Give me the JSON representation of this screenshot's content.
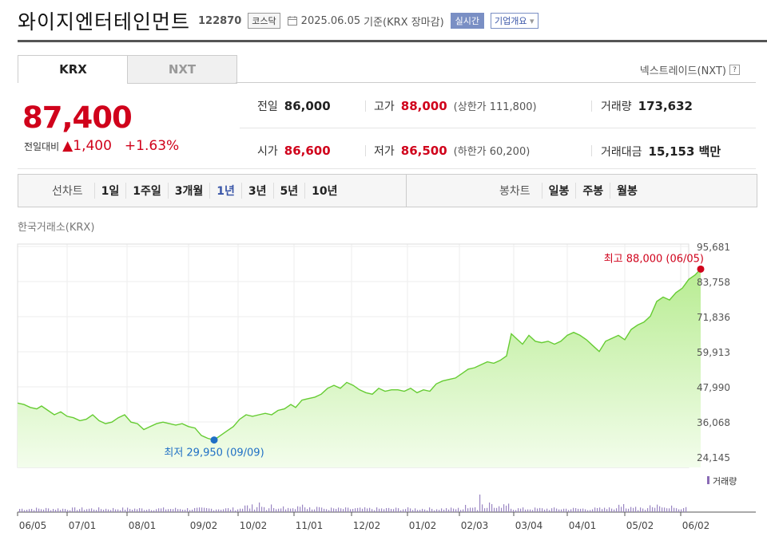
{
  "header": {
    "company": "와이지엔터테인먼트",
    "code": "122870",
    "market_badge": "코스닥",
    "date": "2025.06.05",
    "basis": "기준(KRX 장마감)",
    "realtime": "실시간",
    "corp_overview": "기업개요",
    "corp_chevron": "▾"
  },
  "tabs": [
    {
      "label": "KRX",
      "active": true
    },
    {
      "label": "NXT",
      "active": false
    }
  ],
  "nxt_link": {
    "label": "넥스트레이드(NXT)",
    "help": "?"
  },
  "price": {
    "current": "87,400",
    "change_label": "전일대비",
    "change_arrow": "▲",
    "change": "1,400",
    "change_pct": "+1.63%"
  },
  "stats": {
    "prev_label": "전일",
    "prev": "86,000",
    "high_label": "고가",
    "high": "88,000",
    "upper_limit_text": "(상한가 111,800)",
    "volume_label": "거래량",
    "volume": "173,632",
    "open_label": "시가",
    "open": "86,600",
    "low_label": "저가",
    "low": "86,500",
    "lower_limit_text": "(하한가 60,200)",
    "amount_label": "거래대금",
    "amount": "15,153 백만"
  },
  "toolbar": {
    "line_label": "선차트",
    "line_periods": [
      "1일",
      "1주일",
      "3개월",
      "1년",
      "3년",
      "5년",
      "10년"
    ],
    "active_period": "1년",
    "candle_label": "봉차트",
    "candle_periods": [
      "일봉",
      "주봉",
      "월봉"
    ]
  },
  "chart_data": {
    "type": "area",
    "title": "한국거래소(KRX)",
    "y_ticks": [
      "95,681",
      "83,758",
      "71,836",
      "59,913",
      "47,990",
      "36,068",
      "24,145"
    ],
    "ylim": [
      24145,
      95681
    ],
    "x_ticks": [
      "06/05",
      "07/01",
      "08/01",
      "09/02",
      "10/02",
      "11/01",
      "12/02",
      "01/02",
      "02/03",
      "03/04",
      "04/01",
      "05/02",
      "06/02"
    ],
    "max_label": "최고 88,000 (06/05)",
    "min_label": "최저 29,950 (09/09)",
    "volume_legend": "거래량",
    "line_color": "#66cc33",
    "fill_color": "#cdf3b3",
    "high_color": "#d0021b",
    "low_color": "#1f6fc5",
    "price_points": [
      [
        0,
        42500
      ],
      [
        8,
        42000
      ],
      [
        16,
        41000
      ],
      [
        24,
        40500
      ],
      [
        30,
        41500
      ],
      [
        38,
        40000
      ],
      [
        46,
        38500
      ],
      [
        54,
        39500
      ],
      [
        62,
        38000
      ],
      [
        70,
        37500
      ],
      [
        78,
        36500
      ],
      [
        86,
        37000
      ],
      [
        94,
        38500
      ],
      [
        102,
        36500
      ],
      [
        110,
        35500
      ],
      [
        118,
        36000
      ],
      [
        126,
        37500
      ],
      [
        134,
        38500
      ],
      [
        142,
        36000
      ],
      [
        150,
        35500
      ],
      [
        158,
        33500
      ],
      [
        166,
        34500
      ],
      [
        174,
        35500
      ],
      [
        182,
        36000
      ],
      [
        190,
        35500
      ],
      [
        198,
        35000
      ],
      [
        206,
        35500
      ],
      [
        214,
        34500
      ],
      [
        222,
        34000
      ],
      [
        230,
        31500
      ],
      [
        238,
        30500
      ],
      [
        246,
        29950
      ],
      [
        254,
        31500
      ],
      [
        262,
        33000
      ],
      [
        270,
        34500
      ],
      [
        278,
        37000
      ],
      [
        286,
        38500
      ],
      [
        294,
        38000
      ],
      [
        302,
        38500
      ],
      [
        310,
        39000
      ],
      [
        318,
        38500
      ],
      [
        326,
        40000
      ],
      [
        334,
        40500
      ],
      [
        342,
        42000
      ],
      [
        348,
        41000
      ],
      [
        356,
        43500
      ],
      [
        364,
        44000
      ],
      [
        372,
        44500
      ],
      [
        380,
        45500
      ],
      [
        388,
        47500
      ],
      [
        396,
        48500
      ],
      [
        404,
        47500
      ],
      [
        412,
        49500
      ],
      [
        420,
        48500
      ],
      [
        428,
        47000
      ],
      [
        436,
        46000
      ],
      [
        444,
        45500
      ],
      [
        452,
        47500
      ],
      [
        460,
        46500
      ],
      [
        468,
        47000
      ],
      [
        476,
        47000
      ],
      [
        484,
        46500
      ],
      [
        492,
        47500
      ],
      [
        500,
        46000
      ],
      [
        508,
        47000
      ],
      [
        516,
        46500
      ],
      [
        524,
        49000
      ],
      [
        532,
        50000
      ],
      [
        540,
        50500
      ],
      [
        548,
        51000
      ],
      [
        556,
        52500
      ],
      [
        564,
        54000
      ],
      [
        572,
        54500
      ],
      [
        580,
        55500
      ],
      [
        588,
        56500
      ],
      [
        596,
        56000
      ],
      [
        604,
        57000
      ],
      [
        612,
        58500
      ],
      [
        618,
        66000
      ],
      [
        624,
        64500
      ],
      [
        632,
        62500
      ],
      [
        640,
        65500
      ],
      [
        648,
        63500
      ],
      [
        656,
        63000
      ],
      [
        664,
        63500
      ],
      [
        672,
        62500
      ],
      [
        680,
        63500
      ],
      [
        688,
        65500
      ],
      [
        696,
        66500
      ],
      [
        704,
        65500
      ],
      [
        712,
        64000
      ],
      [
        720,
        62000
      ],
      [
        728,
        60000
      ],
      [
        736,
        63500
      ],
      [
        744,
        64500
      ],
      [
        752,
        65500
      ],
      [
        760,
        64000
      ],
      [
        768,
        67500
      ],
      [
        776,
        69000
      ],
      [
        784,
        70000
      ],
      [
        792,
        72000
      ],
      [
        800,
        77000
      ],
      [
        808,
        78500
      ],
      [
        816,
        77500
      ],
      [
        824,
        80000
      ],
      [
        832,
        81500
      ],
      [
        840,
        84500
      ],
      [
        848,
        86000
      ],
      [
        855,
        88000
      ]
    ],
    "max_point": [
      855,
      88000
    ],
    "min_point": [
      246,
      29950
    ]
  }
}
